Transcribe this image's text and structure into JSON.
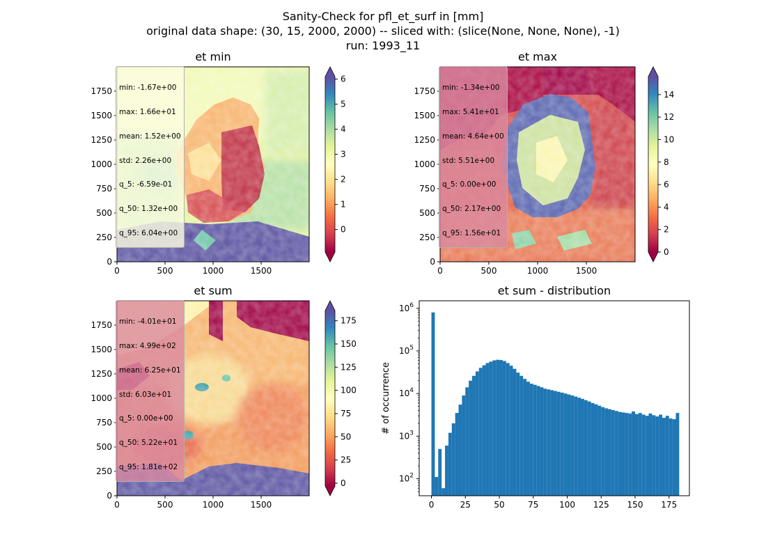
{
  "suptitle": {
    "line1": "Sanity-Check for pfl_et_surf in [mm]",
    "line2": "original data shape: (30, 15, 2000, 2000) -- sliced with: (slice(None, None, None), -1)",
    "line3": "run: 1993_11"
  },
  "colors": {
    "hist_bar": "#1f77b4",
    "stats_box_light": "#fdfde0",
    "stats_box_pink": "#d98aa0",
    "colormap": "Spectral"
  },
  "chart_data": [
    {
      "type": "heatmap",
      "title": "et min",
      "colormap": "Spectral",
      "xlim": [
        0,
        2000
      ],
      "ylim": [
        0,
        2000
      ],
      "xticks": [
        "0",
        "500",
        "1000",
        "1500"
      ],
      "yticks": [
        "0",
        "250",
        "500",
        "750",
        "1000",
        "1250",
        "1500",
        "1750"
      ],
      "colorbar": {
        "range": [
          -0.9,
          6.1
        ],
        "ticks": [
          "0",
          "1",
          "2",
          "3",
          "4",
          "5",
          "6"
        ],
        "extend": "both"
      },
      "stats": [
        "min: -1.67e+00",
        "max: 1.66e+01",
        "mean: 1.52e+00",
        "std: 2.26e+00",
        "q_5: -6.59e-01",
        "q_50: 1.32e+00",
        "q_95: 6.04e+00"
      ]
    },
    {
      "type": "heatmap",
      "title": "et max",
      "colormap": "Spectral",
      "xlim": [
        0,
        2000
      ],
      "ylim": [
        0,
        2000
      ],
      "xticks": [
        "0",
        "500",
        "1000",
        "1500"
      ],
      "yticks": [
        "0",
        "250",
        "500",
        "750",
        "1000",
        "1250",
        "1500",
        "1750"
      ],
      "colorbar": {
        "range": [
          0,
          15.6
        ],
        "ticks": [
          "0",
          "2",
          "4",
          "6",
          "8",
          "10",
          "12",
          "14"
        ],
        "extend": "both"
      },
      "stats": [
        "min: -1.34e+00",
        "max: 5.41e+01",
        "mean: 4.64e+00",
        "std: 5.51e+00",
        "q_5: 0.00e+00",
        "q_50: 2.17e+00",
        "q_95: 1.56e+01"
      ]
    },
    {
      "type": "heatmap",
      "title": "et sum",
      "colormap": "Spectral",
      "xlim": [
        0,
        2000
      ],
      "ylim": [
        0,
        2000
      ],
      "xticks": [
        "0",
        "500",
        "1000",
        "1500"
      ],
      "yticks": [
        "0",
        "250",
        "500",
        "750",
        "1000",
        "1250",
        "1500",
        "1750"
      ],
      "colorbar": {
        "range": [
          -3,
          186
        ],
        "ticks": [
          "0",
          "25",
          "50",
          "75",
          "100",
          "125",
          "150",
          "175"
        ],
        "extend": "both"
      },
      "stats": [
        "min: -4.01e+01",
        "max: 4.99e+02",
        "mean: 6.25e+01",
        "std: 6.03e+01",
        "q_5: 0.00e+00",
        "q_50: 5.22e+01",
        "q_95: 1.81e+02"
      ]
    },
    {
      "type": "bar",
      "title": "et sum - distribution",
      "ylabel": "# of occurrence",
      "yscale": "log",
      "xlim": [
        -9,
        190
      ],
      "ylim": [
        40,
        1500000
      ],
      "xticks": [
        "0",
        "25",
        "50",
        "75",
        "100",
        "125",
        "150",
        "175"
      ],
      "yticks": [
        "10^2",
        "10^3",
        "10^4",
        "10^5",
        "10^6"
      ],
      "histogram": [
        [
          0,
          800000
        ],
        [
          2.5,
          110
        ],
        [
          5,
          500
        ],
        [
          7.5,
          60
        ],
        [
          10,
          600
        ],
        [
          12.5,
          1200
        ],
        [
          15,
          2000
        ],
        [
          17.5,
          3500
        ],
        [
          20,
          5500
        ],
        [
          22.5,
          9000
        ],
        [
          25,
          14000
        ],
        [
          27.5,
          20000
        ],
        [
          30,
          26000
        ],
        [
          32.5,
          33000
        ],
        [
          35,
          40000
        ],
        [
          37.5,
          46000
        ],
        [
          40,
          52000
        ],
        [
          42.5,
          56000
        ],
        [
          45,
          60000
        ],
        [
          47.5,
          62000
        ],
        [
          50,
          61000
        ],
        [
          52.5,
          58000
        ],
        [
          55,
          52000
        ],
        [
          57.5,
          45000
        ],
        [
          60,
          38000
        ],
        [
          62.5,
          31000
        ],
        [
          65,
          26000
        ],
        [
          67.5,
          22000
        ],
        [
          70,
          19000
        ],
        [
          72.5,
          17000
        ],
        [
          75,
          16000
        ],
        [
          77.5,
          15000
        ],
        [
          80,
          14000
        ],
        [
          82.5,
          13000
        ],
        [
          85,
          12500
        ],
        [
          87.5,
          12000
        ],
        [
          90,
          11500
        ],
        [
          92.5,
          11000
        ],
        [
          95,
          10500
        ],
        [
          97.5,
          10000
        ],
        [
          100,
          9500
        ],
        [
          102.5,
          9000
        ],
        [
          105,
          8500
        ],
        [
          107.5,
          8000
        ],
        [
          110,
          7500
        ],
        [
          112.5,
          7000
        ],
        [
          115,
          6500
        ],
        [
          117.5,
          6000
        ],
        [
          120,
          5600
        ],
        [
          122.5,
          5200
        ],
        [
          125,
          4800
        ],
        [
          127.5,
          4500
        ],
        [
          130,
          4300
        ],
        [
          132.5,
          4100
        ],
        [
          135,
          3900
        ],
        [
          137.5,
          3700
        ],
        [
          140,
          3600
        ],
        [
          142.5,
          3500
        ],
        [
          145,
          3400
        ],
        [
          147.5,
          3800
        ],
        [
          150,
          3300
        ],
        [
          152.5,
          3500
        ],
        [
          155,
          3200
        ],
        [
          157.5,
          3000
        ],
        [
          160,
          3400
        ],
        [
          162.5,
          3100
        ],
        [
          165,
          2900
        ],
        [
          167.5,
          3200
        ],
        [
          170,
          2700
        ],
        [
          172.5,
          3000
        ],
        [
          175,
          2600
        ],
        [
          177.5,
          2500
        ],
        [
          180,
          3500
        ]
      ]
    }
  ]
}
